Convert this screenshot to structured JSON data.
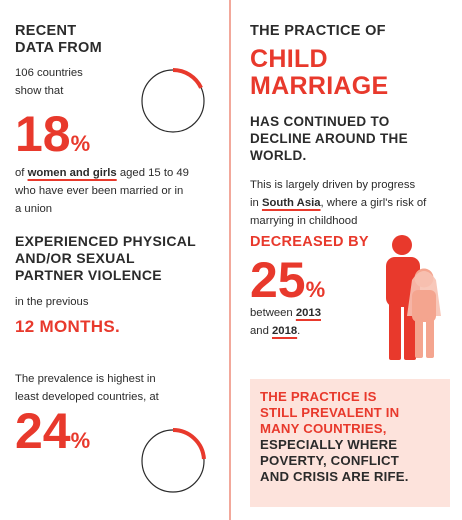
{
  "left": {
    "intro_heading_1": "RECENT",
    "intro_heading_2": "DATA FROM",
    "intro_text_1": "106 countries",
    "intro_text_2": "show that",
    "stat1_number": "18",
    "stat1_unit": "%",
    "desc_prefix": "of ",
    "desc_highlight": "women and girls",
    "desc_rest_1": " aged 15 to 49",
    "desc_line_2": "who have ever been married or in",
    "desc_line_3": "a union",
    "violence_1": "EXPERIENCED PHYSICAL",
    "violence_2": "AND/OR SEXUAL",
    "violence_3": "PARTNER VIOLENCE",
    "period_text": "in the previous",
    "period_value": "12 MONTHS.",
    "prevalence_1": "The prevalence is highest in",
    "prevalence_2": "least developed countries, at",
    "stat2_number": "24",
    "stat2_unit": "%"
  },
  "right": {
    "title_1": "THE PRACTICE OF",
    "title_2": "CHILD",
    "title_3": "MARRIAGE",
    "decline_1": "HAS CONTINUED TO",
    "decline_2": "DECLINE AROUND THE",
    "decline_3": "WORLD.",
    "driven_1": "This is largely driven by progress",
    "driven_2_prefix": "in ",
    "driven_2_highlight": "South Asia",
    "driven_2_rest": ", where a girl's risk of",
    "driven_3": "marrying in childhood",
    "decreased_label": "DECREASED BY",
    "decrease_number": "25",
    "decrease_unit": "%",
    "between_prefix": "between ",
    "year_start": "2013",
    "and_text": "and ",
    "year_end": "2018",
    "period": ".",
    "callout_red_1": "THE PRACTICE IS",
    "callout_red_2": "STILL PREVALENT IN",
    "callout_red_3": "MANY COUNTRIES,",
    "callout_dark_1": "ESPECIALLY WHERE",
    "callout_dark_2": "POVERTY, CONFLICT",
    "callout_dark_3": "AND CRISIS ARE RIFE."
  },
  "gauges": [
    {
      "name": "gauge-18-percent",
      "fraction": 0.18
    },
    {
      "name": "gauge-24-percent",
      "fraction": 0.24
    }
  ],
  "colors": {
    "accent": "#e8392c",
    "accent_light": "#f4a58f",
    "callout_bg": "#fde3dc",
    "divider": "#f2a89b",
    "text": "#2b2b2b"
  },
  "icons": [
    "man-figure-icon",
    "girl-figure-icon"
  ]
}
